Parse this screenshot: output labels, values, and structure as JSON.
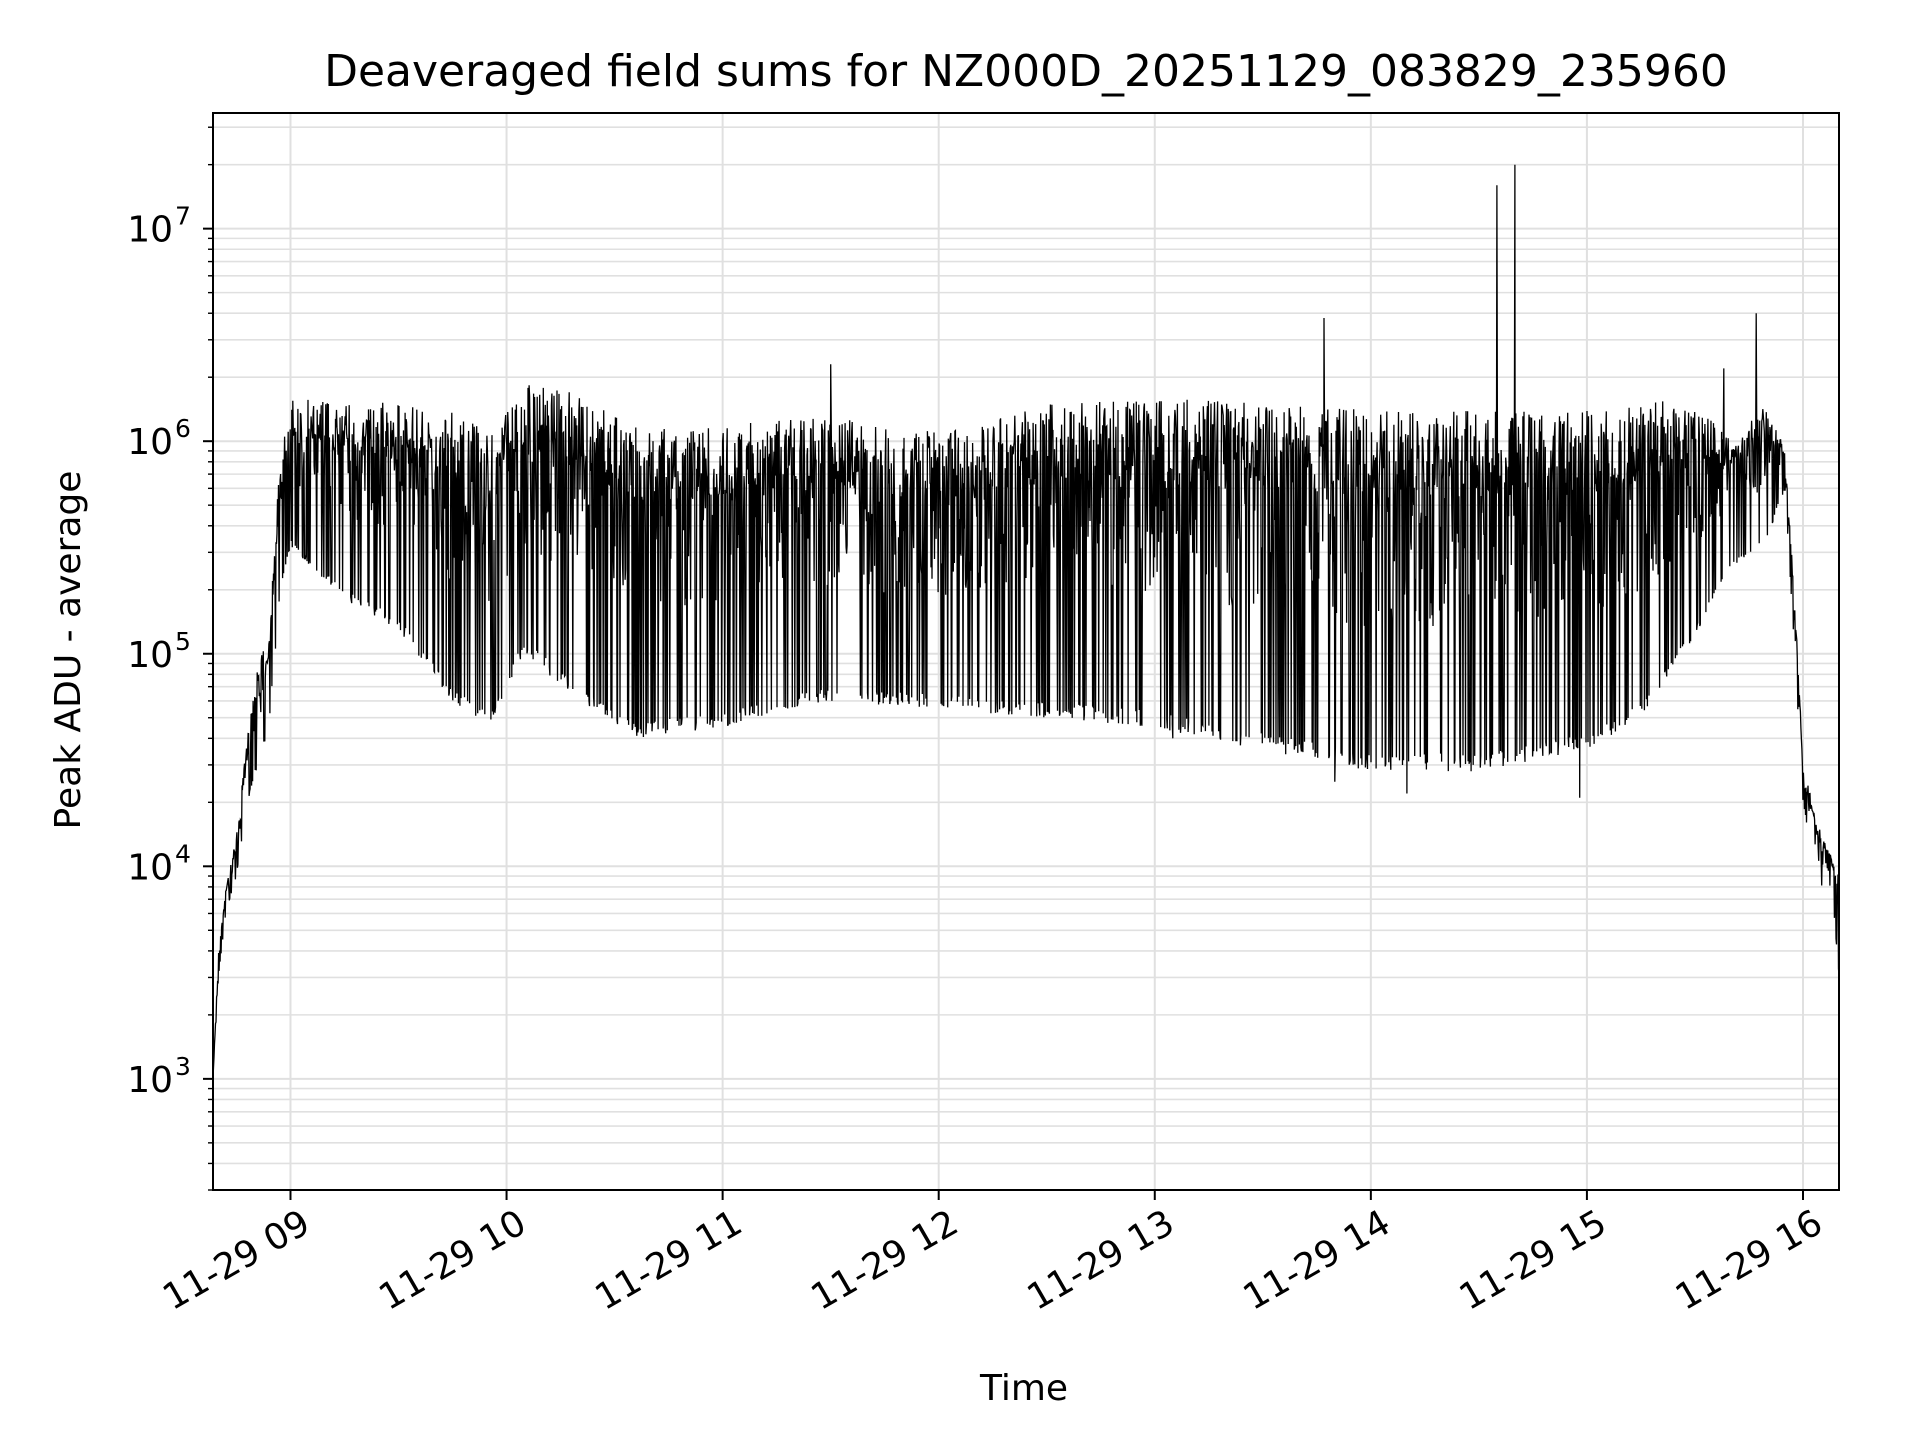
{
  "chart_data": {
    "type": "line",
    "title": "Deaveraged field sums for NZ000D_20251129_083829_235960",
    "xlabel": "Time",
    "ylabel": "Peak ADU - average",
    "yscale": "log",
    "xlim": [
      "2025-11-29 08:38:29",
      "2025-11-29 16:10:00"
    ],
    "ylim": [
      300,
      35000000
    ],
    "grid": true,
    "grid_minor": true,
    "line_color": "#000000",
    "grid_color": "#e0e0e0",
    "x_ticks": [
      {
        "value": "2025-11-29 09:00",
        "label": "11-29 09"
      },
      {
        "value": "2025-11-29 10:00",
        "label": "11-29 10"
      },
      {
        "value": "2025-11-29 11:00",
        "label": "11-29 11"
      },
      {
        "value": "2025-11-29 12:00",
        "label": "11-29 12"
      },
      {
        "value": "2025-11-29 13:00",
        "label": "11-29 13"
      },
      {
        "value": "2025-11-29 14:00",
        "label": "11-29 14"
      },
      {
        "value": "2025-11-29 15:00",
        "label": "11-29 15"
      },
      {
        "value": "2025-11-29 16:00",
        "label": "11-29 16"
      }
    ],
    "y_ticks": [
      {
        "value": 1000,
        "base": "10",
        "exp": "3"
      },
      {
        "value": 10000,
        "base": "10",
        "exp": "4"
      },
      {
        "value": 100000,
        "base": "10",
        "exp": "5"
      },
      {
        "value": 1000000,
        "base": "10",
        "exp": "6"
      },
      {
        "value": 10000000,
        "base": "10",
        "exp": "7"
      }
    ],
    "series": [
      {
        "envelope": [
          {
            "t": "2025-11-29 08:38:29",
            "upper": 1000,
            "lower": 1000
          },
          {
            "t": "2025-11-29 08:40",
            "upper": 4000,
            "lower": 3000
          },
          {
            "t": "2025-11-29 08:42",
            "upper": 8000,
            "lower": 6000
          },
          {
            "t": "2025-11-29 08:45",
            "upper": 14000,
            "lower": 9000
          },
          {
            "t": "2025-11-29 08:48",
            "upper": 40000,
            "lower": 20000
          },
          {
            "t": "2025-11-29 08:51",
            "upper": 100000,
            "lower": 30000
          },
          {
            "t": "2025-11-29 08:54",
            "upper": 120000,
            "lower": 45000
          },
          {
            "t": "2025-11-29 08:57",
            "upper": 800000,
            "lower": 180000
          },
          {
            "t": "2025-11-29 09:00",
            "upper": 1600000,
            "lower": 320000
          },
          {
            "t": "2025-11-29 09:15",
            "upper": 1600000,
            "lower": 180000
          },
          {
            "t": "2025-11-29 09:30",
            "upper": 1500000,
            "lower": 130000
          },
          {
            "t": "2025-11-29 09:45",
            "upper": 1400000,
            "lower": 60000
          },
          {
            "t": "2025-11-29 09:55",
            "upper": 1100000,
            "lower": 45000
          },
          {
            "t": "2025-11-29 10:05",
            "upper": 1900000,
            "lower": 100000
          },
          {
            "t": "2025-11-29 10:20",
            "upper": 1700000,
            "lower": 60000
          },
          {
            "t": "2025-11-29 10:35",
            "upper": 1200000,
            "lower": 40000
          },
          {
            "t": "2025-11-29 11:00",
            "upper": 1200000,
            "lower": 45000
          },
          {
            "t": "2025-11-29 11:30",
            "upper": 1300000,
            "lower": 60000
          },
          {
            "t": "2025-11-29 12:00",
            "upper": 1100000,
            "lower": 55000
          },
          {
            "t": "2025-11-29 12:30",
            "upper": 1500000,
            "lower": 50000
          },
          {
            "t": "2025-11-29 13:00",
            "upper": 1600000,
            "lower": 45000
          },
          {
            "t": "2025-11-29 13:30",
            "upper": 1500000,
            "lower": 35000
          },
          {
            "t": "2025-11-29 14:00",
            "upper": 1400000,
            "lower": 28000
          },
          {
            "t": "2025-11-29 14:30",
            "upper": 1400000,
            "lower": 28000
          },
          {
            "t": "2025-11-29 15:00",
            "upper": 1400000,
            "lower": 35000
          },
          {
            "t": "2025-11-29 15:15",
            "upper": 1500000,
            "lower": 50000
          },
          {
            "t": "2025-11-29 15:30",
            "upper": 1600000,
            "lower": 120000
          },
          {
            "t": "2025-11-29 15:40",
            "upper": 1000000,
            "lower": 250000
          },
          {
            "t": "2025-11-29 15:50",
            "upper": 1500000,
            "lower": 350000
          },
          {
            "t": "2025-11-29 15:55",
            "upper": 900000,
            "lower": 600000
          },
          {
            "t": "2025-11-29 15:58",
            "upper": 150000,
            "lower": 80000
          },
          {
            "t": "2025-11-29 16:00",
            "upper": 30000,
            "lower": 20000
          },
          {
            "t": "2025-11-29 16:04",
            "upper": 16000,
            "lower": 8000
          },
          {
            "t": "2025-11-29 16:08",
            "upper": 11000,
            "lower": 8000
          },
          {
            "t": "2025-11-29 16:10",
            "upper": 9000,
            "lower": 3000
          }
        ],
        "spikes": [
          {
            "t": "2025-11-29 11:30",
            "value": 2300000
          },
          {
            "t": "2025-11-29 13:47",
            "value": 3800000
          },
          {
            "t": "2025-11-29 14:35",
            "value": 16000000
          },
          {
            "t": "2025-11-29 14:40",
            "value": 20000000
          },
          {
            "t": "2025-11-29 15:47",
            "value": 4000000
          },
          {
            "t": "2025-11-29 15:38",
            "value": 2200000
          }
        ],
        "dips": [
          {
            "t": "2025-11-29 13:05",
            "value": 40000
          },
          {
            "t": "2025-11-29 13:50",
            "value": 25000
          },
          {
            "t": "2025-11-29 14:10",
            "value": 22000
          },
          {
            "t": "2025-11-29 14:58",
            "value": 21000
          }
        ]
      }
    ]
  }
}
